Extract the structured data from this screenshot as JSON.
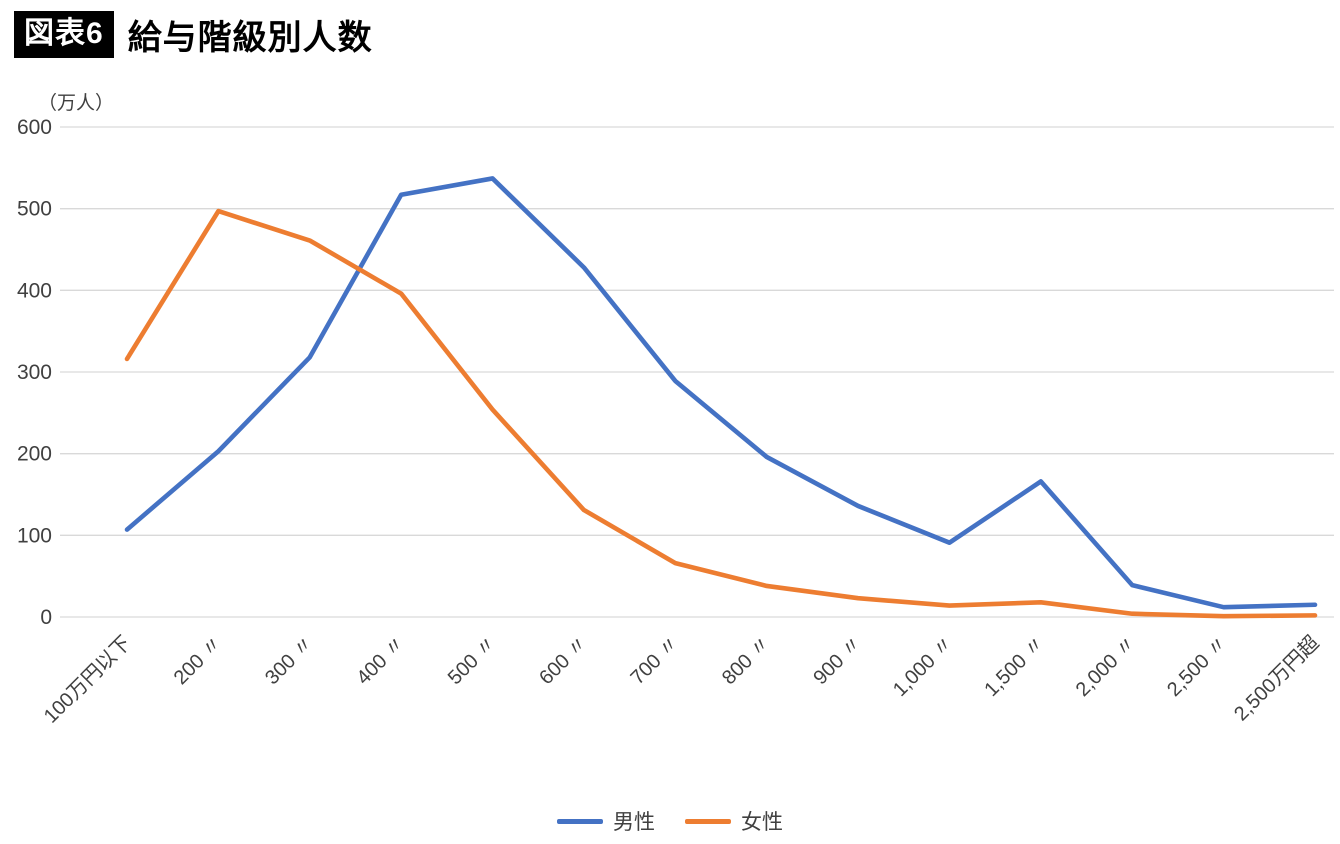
{
  "header": {
    "badge": "図表6",
    "title": "給与階級別人数"
  },
  "chart_data": {
    "type": "line",
    "title": "給与階級別人数",
    "unit_label": "（万人）",
    "categories": [
      "100万円以下",
      "200 〃",
      "300 〃",
      "400 〃",
      "500 〃",
      "600 〃",
      "700 〃",
      "800 〃",
      "900 〃",
      "1,000 〃",
      "1,500 〃",
      "2,000 〃",
      "2,500 〃",
      "2,500万円超"
    ],
    "x_tick_display": [
      "100万円以下",
      "200",
      "〃",
      "300",
      "〃",
      "400",
      "〃",
      "500",
      "〃",
      "600",
      "〃",
      "700",
      "〃",
      "800",
      "〃",
      "900",
      "〃",
      "1,000",
      "〃",
      "1,500",
      "〃",
      "2,000",
      "〃",
      "2,500",
      "〃",
      "2,500万円超"
    ],
    "series": [
      {
        "name": "男性",
        "color": "#4472C4",
        "values": [
          107,
          203,
          318,
          517,
          537,
          428,
          289,
          196,
          136,
          91,
          166,
          39,
          12,
          15
        ]
      },
      {
        "name": "女性",
        "color": "#ED7D31",
        "values": [
          316,
          497,
          461,
          396,
          254,
          131,
          66,
          38,
          23,
          14,
          18,
          4,
          1,
          2
        ]
      }
    ],
    "y_axis": {
      "min": 0,
      "max": 600,
      "step": 100,
      "ticks": [
        0,
        100,
        200,
        300,
        400,
        500,
        600
      ]
    },
    "grid": true,
    "legend_position": "bottom"
  },
  "colors": {
    "male_line": "#4472C4",
    "female_line": "#ED7D31",
    "grid": "#D9D9D9",
    "axis_text": "#404040",
    "badge_bg": "#000000",
    "badge_text": "#ffffff"
  }
}
